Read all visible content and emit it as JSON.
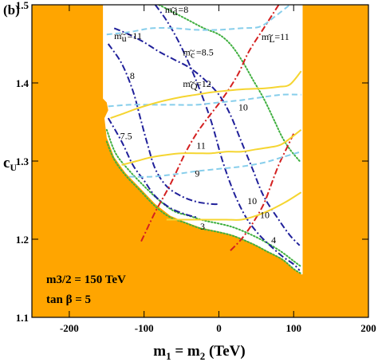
{
  "chart_data": {
    "type": "line",
    "panel_label": "(b)",
    "xlabel": "m1 = m2 (TeV)",
    "ylabel": "cU",
    "xlim": [
      -250,
      200
    ],
    "ylim": [
      1.1,
      1.5
    ],
    "x_ticks": [
      {
        "value": -200,
        "label": "-200"
      },
      {
        "value": -100,
        "label": "-100"
      },
      {
        "value": 0,
        "label": "0"
      },
      {
        "value": 100,
        "label": "100"
      },
      {
        "value": 200,
        "label": "200"
      }
    ],
    "y_ticks": [
      {
        "value": 1.1,
        "label": "1.1"
      },
      {
        "value": 1.2,
        "label": "1.2"
      },
      {
        "value": 1.3,
        "label": "1.3"
      },
      {
        "value": 1.4,
        "label": "1.4"
      },
      {
        "value": 1.5,
        "label": "1.5"
      }
    ],
    "parameters": [
      "m3/2 = 150 TeV",
      "tan β = 5"
    ],
    "colors": {
      "excluded": "#FFA500",
      "d_squark": "#20209A",
      "u_squark": "#87CEEB",
      "c_squark": "#20209A",
      "q_squark": "#F5D531",
      "l_slepton": "#D42020",
      "boundary": "#3FAF3F"
    },
    "excluded_region": [
      [
        -250,
        1.5
      ],
      [
        -155,
        1.5
      ],
      [
        -155,
        1.38
      ],
      [
        -150,
        1.375
      ],
      [
        -148,
        1.365
      ],
      [
        -153,
        1.355
      ],
      [
        -150,
        1.33
      ],
      [
        -140,
        1.305
      ],
      [
        -125,
        1.285
      ],
      [
        -105,
        1.265
      ],
      [
        -85,
        1.245
      ],
      [
        -65,
        1.23
      ],
      [
        -45,
        1.222
      ],
      [
        -25,
        1.215
      ],
      [
        0,
        1.21
      ],
      [
        20,
        1.205
      ],
      [
        45,
        1.195
      ],
      [
        65,
        1.185
      ],
      [
        85,
        1.175
      ],
      [
        100,
        1.162
      ],
      [
        110,
        1.155
      ],
      [
        112,
        1.155
      ],
      [
        112,
        1.5
      ],
      [
        200,
        1.5
      ],
      [
        200,
        1.1
      ],
      [
        -250,
        1.1
      ]
    ],
    "boundary_lines": [
      {
        "points": [
          [
            -150,
            1.325
          ],
          [
            -140,
            1.302
          ],
          [
            -125,
            1.282
          ],
          [
            -105,
            1.262
          ],
          [
            -85,
            1.242
          ],
          [
            -65,
            1.228
          ],
          [
            -45,
            1.221
          ],
          [
            -25,
            1.214
          ],
          [
            0,
            1.209
          ],
          [
            20,
            1.204
          ],
          [
            45,
            1.194
          ],
          [
            65,
            1.184
          ],
          [
            85,
            1.174
          ],
          [
            100,
            1.162
          ],
          [
            110,
            1.156
          ]
        ]
      },
      {
        "points": [
          [
            -150,
            1.34
          ],
          [
            -138,
            1.31
          ],
          [
            -120,
            1.288
          ],
          [
            -100,
            1.268
          ],
          [
            -80,
            1.25
          ],
          [
            -60,
            1.236
          ],
          [
            -40,
            1.23
          ],
          [
            -20,
            1.224
          ],
          [
            0,
            1.22
          ],
          [
            20,
            1.215
          ],
          [
            45,
            1.205
          ],
          [
            65,
            1.195
          ],
          [
            85,
            1.183
          ],
          [
            100,
            1.172
          ],
          [
            110,
            1.165
          ]
        ]
      },
      {
        "points": [
          [
            -80,
            1.5
          ],
          [
            -60,
            1.49
          ],
          [
            -40,
            1.48
          ],
          [
            -20,
            1.47
          ],
          [
            0,
            1.462
          ],
          [
            15,
            1.45
          ],
          [
            30,
            1.43
          ],
          [
            45,
            1.405
          ],
          [
            60,
            1.38
          ],
          [
            75,
            1.35
          ],
          [
            85,
            1.33
          ],
          [
            95,
            1.315
          ],
          [
            108,
            1.3
          ]
        ]
      }
    ],
    "series": [
      {
        "key": "d8",
        "name": "8",
        "family": "d_squark",
        "style": "dashdot",
        "label": {
          "x": -73,
          "y": 1.49
        },
        "points": [
          [
            -85,
            1.5
          ],
          [
            -70,
            1.48
          ],
          [
            -55,
            1.455
          ],
          [
            -40,
            1.425
          ],
          [
            -25,
            1.39
          ],
          [
            -10,
            1.35
          ],
          [
            5,
            1.3
          ],
          [
            20,
            1.26
          ],
          [
            35,
            1.23
          ],
          [
            50,
            1.21
          ],
          [
            65,
            1.195
          ],
          [
            85,
            1.178
          ],
          [
            100,
            1.168
          ],
          [
            108,
            1.16
          ]
        ]
      },
      {
        "key": "c8p5",
        "name": "8.5",
        "family": "c_squark",
        "style": "dashdot",
        "label": {
          "x": -47,
          "y": 1.437
        },
        "points": [
          [
            -140,
            1.47
          ],
          [
            -120,
            1.462
          ],
          [
            -100,
            1.452
          ],
          [
            -80,
            1.44
          ],
          [
            -60,
            1.43
          ],
          [
            -40,
            1.42
          ],
          [
            -20,
            1.405
          ],
          [
            0,
            1.385
          ],
          [
            15,
            1.36
          ],
          [
            30,
            1.325
          ],
          [
            45,
            1.29
          ],
          [
            60,
            1.255
          ],
          [
            80,
            1.225
          ],
          [
            95,
            1.205
          ],
          [
            108,
            1.192
          ]
        ]
      },
      {
        "key": "c8",
        "name": "8",
        "family": "c_squark",
        "style": "dashdot",
        "label": {
          "x": -120,
          "y": 1.405
        },
        "points": [
          [
            -148,
            1.45
          ],
          [
            -130,
            1.425
          ],
          [
            -115,
            1.39
          ],
          [
            -105,
            1.355
          ],
          [
            -95,
            1.32
          ],
          [
            -85,
            1.29
          ],
          [
            -70,
            1.268
          ],
          [
            -50,
            1.255
          ],
          [
            -30,
            1.248
          ],
          [
            -10,
            1.245
          ],
          [
            0,
            1.245
          ]
        ]
      },
      {
        "key": "c7p5",
        "name": "7.5",
        "family": "c_squark",
        "style": "dashdot",
        "label": {
          "x": -131,
          "y": 1.328
        },
        "points": [
          [
            -148,
            1.355
          ],
          [
            -130,
            1.325
          ],
          [
            -115,
            1.295
          ],
          [
            -100,
            1.275
          ],
          [
            -85,
            1.255
          ],
          [
            -65,
            1.24
          ],
          [
            -45,
            1.232
          ],
          [
            -30,
            1.228
          ]
        ]
      },
      {
        "key": "l11",
        "name": "11",
        "family": "l_slepton",
        "style": "dashdot",
        "label": {
          "x": 55,
          "y": 1.454
        },
        "points": [
          [
            80,
            1.5
          ],
          [
            60,
            1.47
          ],
          [
            40,
            1.44
          ],
          [
            25,
            1.41
          ],
          [
            5,
            1.38
          ],
          [
            -15,
            1.355
          ],
          [
            -30,
            1.335
          ],
          [
            -45,
            1.31
          ],
          [
            -65,
            1.27
          ],
          [
            -85,
            1.235
          ],
          [
            -100,
            1.205
          ],
          [
            -105,
            1.195
          ]
        ]
      },
      {
        "key": "l10",
        "name": "10",
        "family": "l_slepton",
        "style": "dashdot",
        "label": {
          "x": 38,
          "y": 1.243
        },
        "points": [
          [
            100,
            1.335
          ],
          [
            90,
            1.315
          ],
          [
            80,
            1.295
          ],
          [
            70,
            1.27
          ],
          [
            60,
            1.245
          ],
          [
            45,
            1.22
          ],
          [
            30,
            1.2
          ],
          [
            15,
            1.185
          ]
        ]
      },
      {
        "key": "u11",
        "name": "11",
        "family": "u_squark",
        "style": "dashed",
        "label": {
          "x": -138,
          "y": 1.457
        },
        "points": [
          [
            -150,
            1.462
          ],
          [
            -120,
            1.465
          ],
          [
            -90,
            1.47
          ],
          [
            -60,
            1.47
          ],
          [
            -30,
            1.468
          ],
          [
            0,
            1.468
          ],
          [
            30,
            1.47
          ],
          [
            55,
            1.472
          ],
          [
            75,
            1.485
          ],
          [
            95,
            1.5
          ]
        ]
      },
      {
        "key": "u10",
        "name": "10",
        "family": "u_squark",
        "style": "dashed",
        "label": {
          "x": 25,
          "y": 1.365
        },
        "points": [
          [
            -148,
            1.37
          ],
          [
            -120,
            1.372
          ],
          [
            -90,
            1.372
          ],
          [
            -60,
            1.372
          ],
          [
            -30,
            1.372
          ],
          [
            0,
            1.375
          ],
          [
            30,
            1.378
          ],
          [
            60,
            1.382
          ],
          [
            85,
            1.385
          ],
          [
            110,
            1.385
          ]
        ]
      },
      {
        "key": "u9",
        "name": "9",
        "family": "u_squark",
        "style": "dashed",
        "label": {
          "x": -32,
          "y": 1.282
        },
        "points": [
          [
            -120,
            1.28
          ],
          [
            -90,
            1.28
          ],
          [
            -60,
            1.283
          ],
          [
            -30,
            1.287
          ],
          [
            0,
            1.29
          ],
          [
            30,
            1.293
          ],
          [
            60,
            1.298
          ],
          [
            85,
            1.305
          ],
          [
            110,
            1.312
          ]
        ]
      },
      {
        "key": "q12",
        "name": "12",
        "family": "q_squark",
        "style": "solid",
        "label": {
          "x": -50,
          "y": 1.388
        },
        "points": [
          [
            -145,
            1.355
          ],
          [
            -130,
            1.36
          ],
          [
            -110,
            1.367
          ],
          [
            -90,
            1.373
          ],
          [
            -70,
            1.378
          ],
          [
            -50,
            1.382
          ],
          [
            -30,
            1.385
          ],
          [
            -10,
            1.388
          ],
          [
            10,
            1.39
          ],
          [
            35,
            1.392
          ],
          [
            60,
            1.393
          ],
          [
            80,
            1.395
          ],
          [
            95,
            1.398
          ],
          [
            110,
            1.415
          ]
        ]
      },
      {
        "key": "q11",
        "name": "11",
        "family": "q_squark",
        "style": "solid",
        "label": {
          "x": -30,
          "y": 1.316
        },
        "points": [
          [
            -130,
            1.295
          ],
          [
            -110,
            1.3
          ],
          [
            -90,
            1.305
          ],
          [
            -70,
            1.308
          ],
          [
            -50,
            1.31
          ],
          [
            -30,
            1.31
          ],
          [
            -10,
            1.31
          ],
          [
            10,
            1.312
          ],
          [
            30,
            1.312
          ],
          [
            50,
            1.315
          ],
          [
            70,
            1.318
          ],
          [
            85,
            1.322
          ],
          [
            110,
            1.34
          ]
        ]
      },
      {
        "key": "q10",
        "name": "10",
        "family": "q_squark",
        "style": "solid",
        "label": {
          "x": 65,
          "y": 1.226
        },
        "points": [
          [
            -70,
            1.225
          ],
          [
            -50,
            1.225
          ],
          [
            -30,
            1.225
          ],
          [
            -10,
            1.225
          ],
          [
            10,
            1.225
          ],
          [
            30,
            1.225
          ],
          [
            50,
            1.23
          ],
          [
            70,
            1.238
          ],
          [
            90,
            1.248
          ],
          [
            110,
            1.26
          ]
        ]
      }
    ],
    "curve_labels": {
      "d_tilde": {
        "main": "m",
        "tilde": "~",
        "sub": "d",
        "suffix": "=8",
        "x": -72,
        "y": 1.49
      },
      "u_tilde": {
        "main": "m",
        "tilde": "~",
        "sub": "u",
        "suffix": "=11",
        "x": -140,
        "y": 1.456
      },
      "c_tilde": {
        "main": "m",
        "tilde": "~",
        "sub": "c",
        "suffix": "=8.5",
        "x": -48,
        "y": 1.435
      },
      "q_tilde": {
        "main": "m",
        "tilde": "~",
        "sub": "Q",
        "suffix": "=12",
        "x": -48,
        "y": 1.395
      },
      "l_tilde": {
        "main": "m",
        "tilde": "~",
        "sub": "L",
        "suffix": "=11",
        "x": 57,
        "y": 1.455
      }
    },
    "plain_labels": [
      {
        "text": "8",
        "x": -119,
        "y": 1.405
      },
      {
        "text": "10",
        "x": 26,
        "y": 1.365
      },
      {
        "text": "7.5",
        "x": -132,
        "y": 1.328
      },
      {
        "text": "11",
        "x": -30,
        "y": 1.316
      },
      {
        "text": "9",
        "x": -32,
        "y": 1.28
      },
      {
        "text": "10",
        "x": 38,
        "y": 1.245
      },
      {
        "text": "10",
        "x": 55,
        "y": 1.227
      },
      {
        "text": "3",
        "x": -25,
        "y": 1.212
      },
      {
        "text": "4",
        "x": 70,
        "y": 1.195
      }
    ]
  }
}
